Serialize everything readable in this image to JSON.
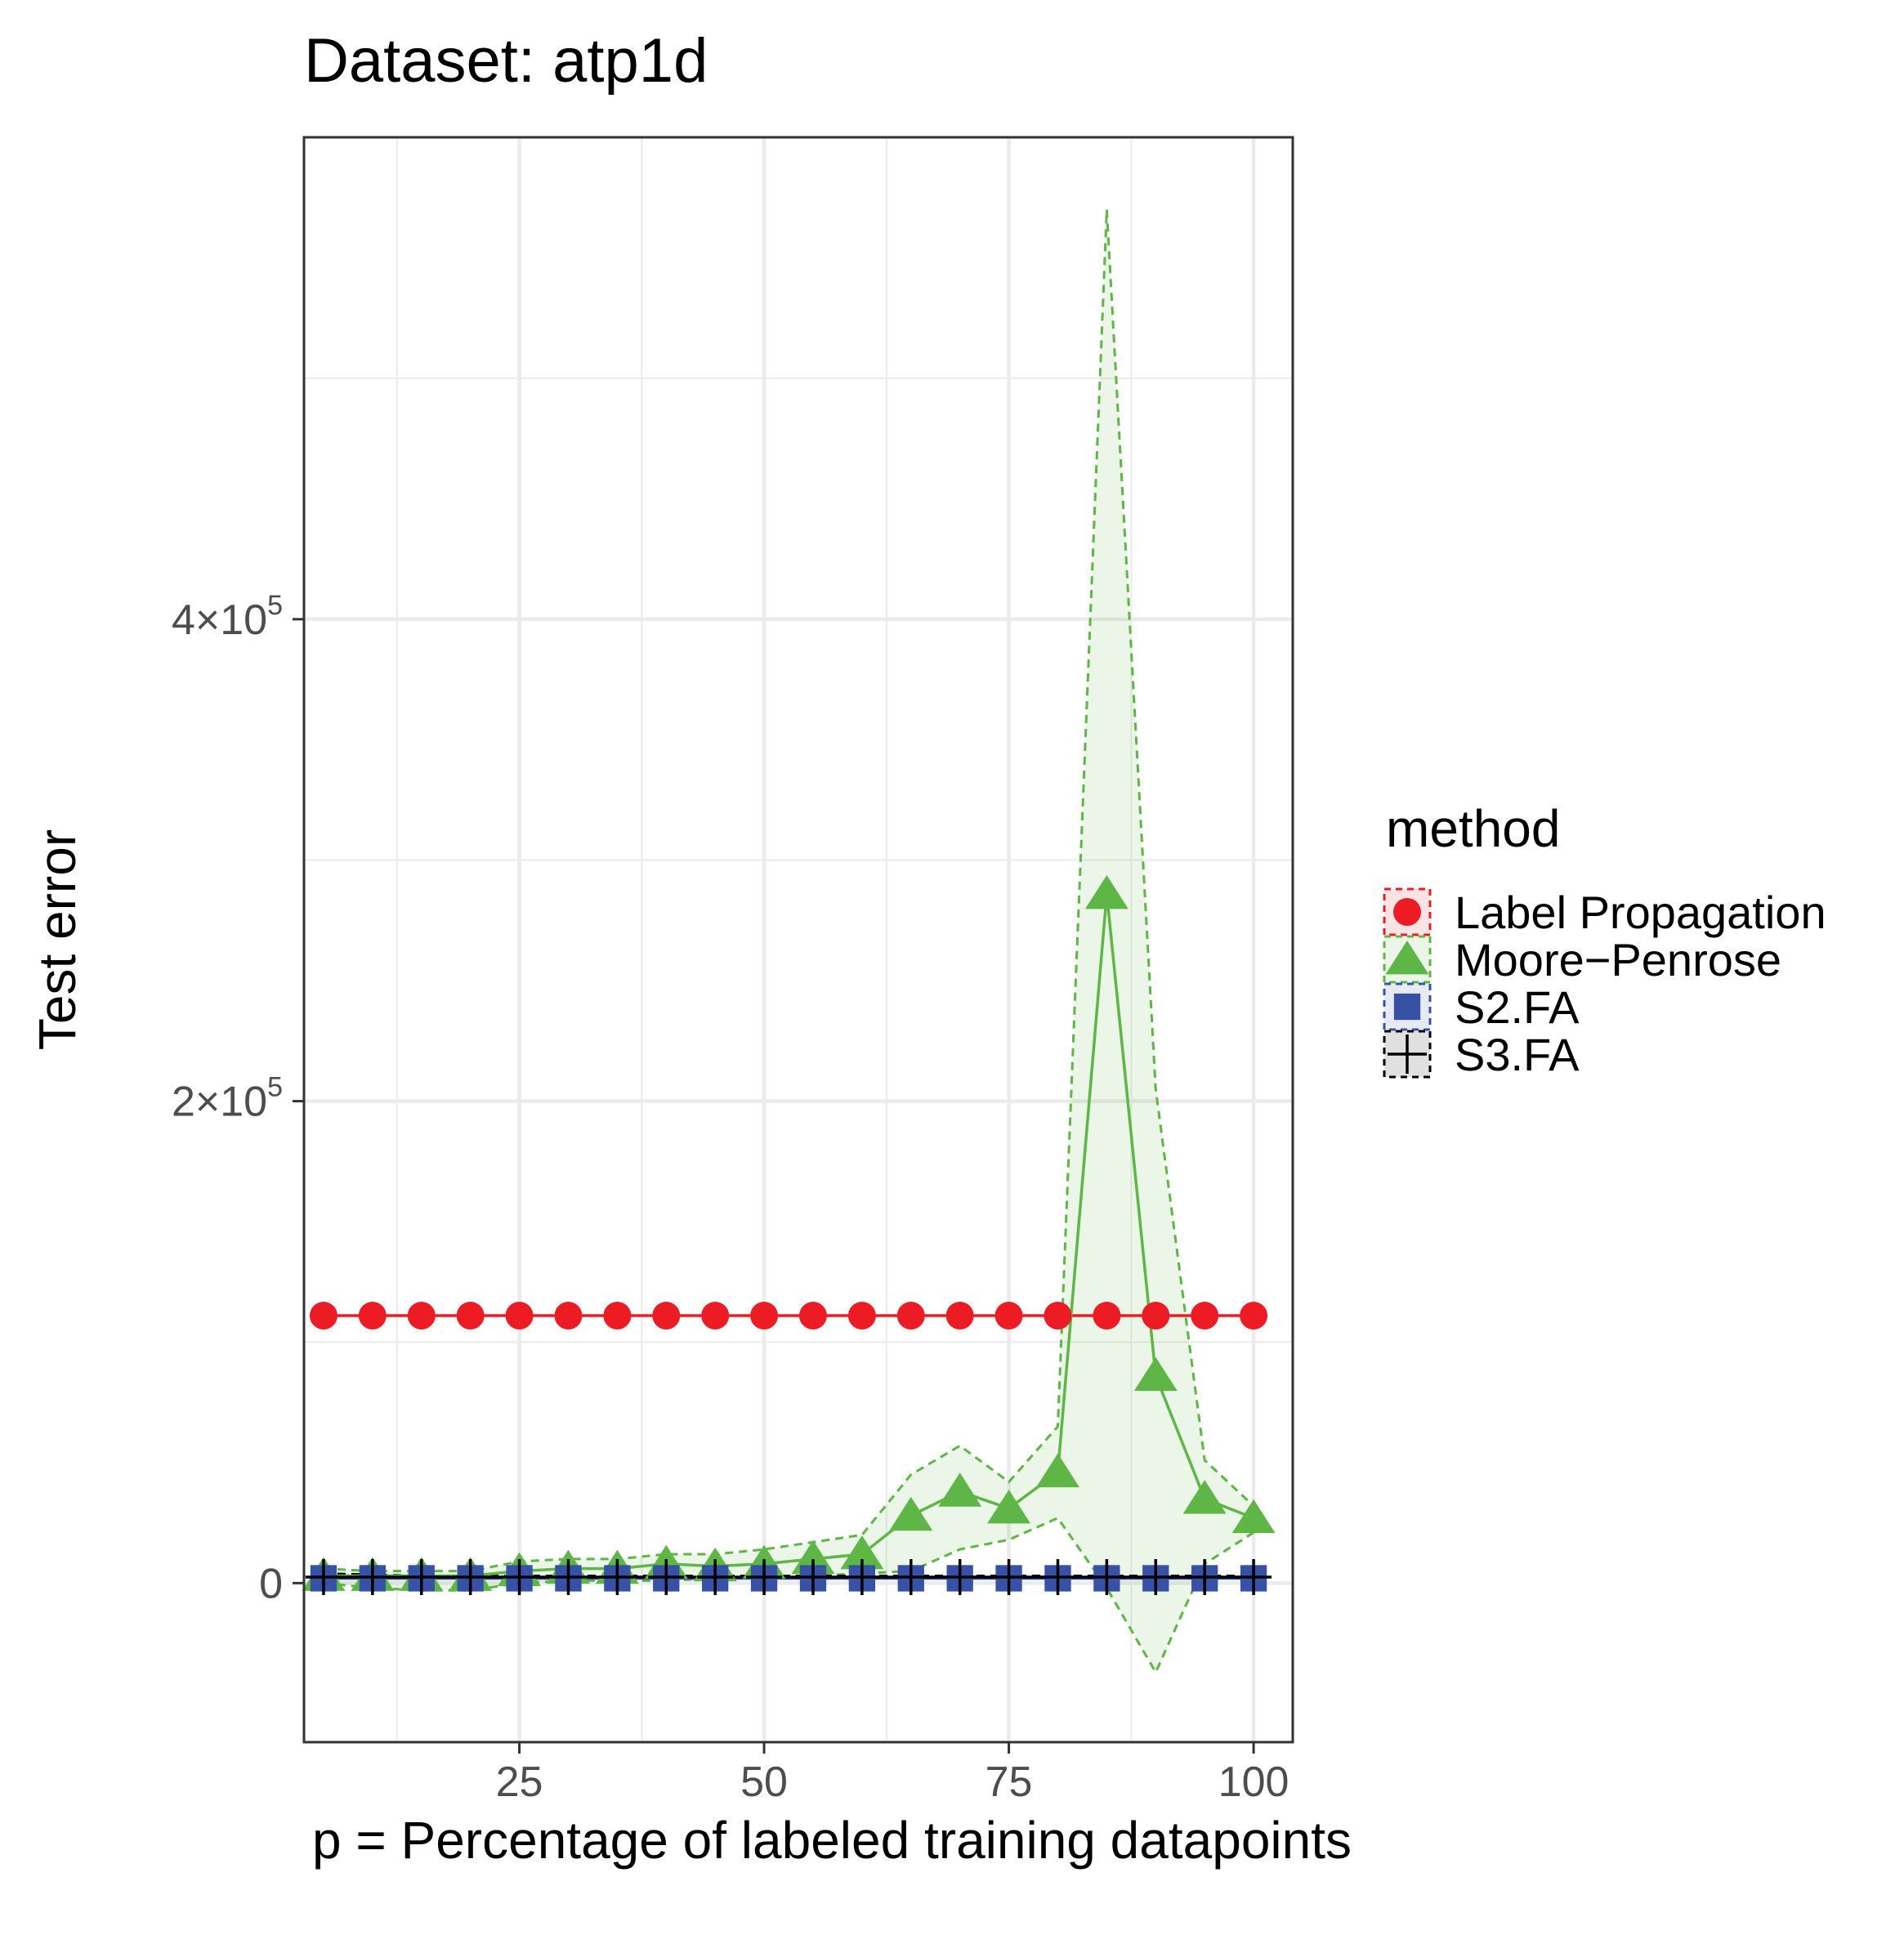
{
  "chart_data": {
    "type": "line",
    "title": "Dataset: atp1d",
    "xlabel": "p = Percentage of labeled training datapoints",
    "ylabel": "Test error",
    "xlim": [
      3,
      104
    ],
    "ylim": [
      -66000,
      600000
    ],
    "x_ticks": [
      {
        "value": 25,
        "label": "25"
      },
      {
        "value": 50,
        "label": "50"
      },
      {
        "value": 75,
        "label": "75"
      },
      {
        "value": 100,
        "label": "100"
      }
    ],
    "y_ticks": [
      {
        "value": 0,
        "mantissa": "0",
        "exponent": ""
      },
      {
        "value": 200000,
        "mantissa": "2×10",
        "exponent": "5"
      },
      {
        "value": 400000,
        "mantissa": "4×10",
        "exponent": "5"
      }
    ],
    "grid": true,
    "legend": {
      "title": "method",
      "position": "right"
    },
    "x": [
      5,
      10,
      15,
      20,
      25,
      30,
      35,
      40,
      45,
      50,
      55,
      60,
      65,
      70,
      75,
      80,
      85,
      90,
      95,
      100
    ],
    "series": [
      {
        "name": "Label Propagation",
        "color": "#ed1c24",
        "marker": "circle",
        "values": [
          111000,
          111000,
          111000,
          111000,
          111000,
          111000,
          111000,
          111000,
          111000,
          111000,
          111000,
          111000,
          111000,
          111000,
          111000,
          111000,
          111000,
          111000,
          111000,
          111000
        ],
        "lower": [
          111000,
          111000,
          111000,
          111000,
          111000,
          111000,
          111000,
          111000,
          111000,
          111000,
          111000,
          111000,
          111000,
          111000,
          111000,
          111000,
          111000,
          111000,
          111000,
          111000
        ],
        "upper": [
          111000,
          111000,
          111000,
          111000,
          111000,
          111000,
          111000,
          111000,
          111000,
          111000,
          111000,
          111000,
          111000,
          111000,
          111000,
          111000,
          111000,
          111000,
          111000,
          111000
        ]
      },
      {
        "name": "Moore−Penrose",
        "color": "#5db645",
        "marker": "triangle",
        "values": [
          3000,
          3000,
          3000,
          3000,
          5000,
          6000,
          6000,
          8000,
          7000,
          8000,
          10000,
          12000,
          28000,
          38000,
          31000,
          46000,
          286000,
          86000,
          35000,
          27000
        ],
        "lower": [
          0,
          -2000,
          -3000,
          -3000,
          0,
          1000,
          1000,
          1000,
          2000,
          2000,
          3000,
          4000,
          5000,
          14000,
          18000,
          27000,
          -2000,
          -37000,
          8000,
          21000
        ],
        "upper": [
          6000,
          5000,
          5000,
          5000,
          9000,
          10000,
          10000,
          12000,
          12000,
          14000,
          17000,
          20000,
          45000,
          57000,
          42000,
          65000,
          570000,
          205000,
          51000,
          32000
        ]
      },
      {
        "name": "S2.FA",
        "color": "#3752a4",
        "marker": "square",
        "values": [
          2000,
          2000,
          2000,
          2000,
          2000,
          2000,
          2000,
          2000,
          2000,
          2000,
          2000,
          2000,
          2000,
          2000,
          2000,
          2000,
          2000,
          2000,
          2000,
          2000
        ],
        "lower": [
          2000,
          2000,
          2000,
          2000,
          2000,
          2000,
          2000,
          2000,
          2000,
          2000,
          2000,
          2000,
          2000,
          2000,
          2000,
          2000,
          2000,
          2000,
          2000,
          2000
        ],
        "upper": [
          2000,
          2000,
          2000,
          2000,
          2000,
          2000,
          2000,
          2000,
          2000,
          2000,
          2000,
          2000,
          2000,
          2000,
          2000,
          2000,
          2000,
          2000,
          2000,
          2000
        ]
      },
      {
        "name": "S3.FA",
        "color": "#000000",
        "marker": "plus",
        "values": [
          2500,
          2500,
          2500,
          2500,
          2500,
          2500,
          2500,
          2500,
          2500,
          2500,
          2500,
          2500,
          2500,
          2500,
          2500,
          2500,
          2500,
          2500,
          2500,
          2500
        ],
        "lower": [
          2000,
          2000,
          2000,
          2000,
          2000,
          2000,
          2000,
          2000,
          2000,
          2000,
          2000,
          2000,
          2000,
          2000,
          2000,
          2000,
          2000,
          2000,
          2000,
          2000
        ],
        "upper": [
          4000,
          3500,
          3000,
          3000,
          3000,
          3000,
          3000,
          3000,
          3000,
          3000,
          3000,
          3000,
          3000,
          3000,
          3000,
          3000,
          3000,
          3000,
          3000,
          3000
        ]
      }
    ]
  }
}
